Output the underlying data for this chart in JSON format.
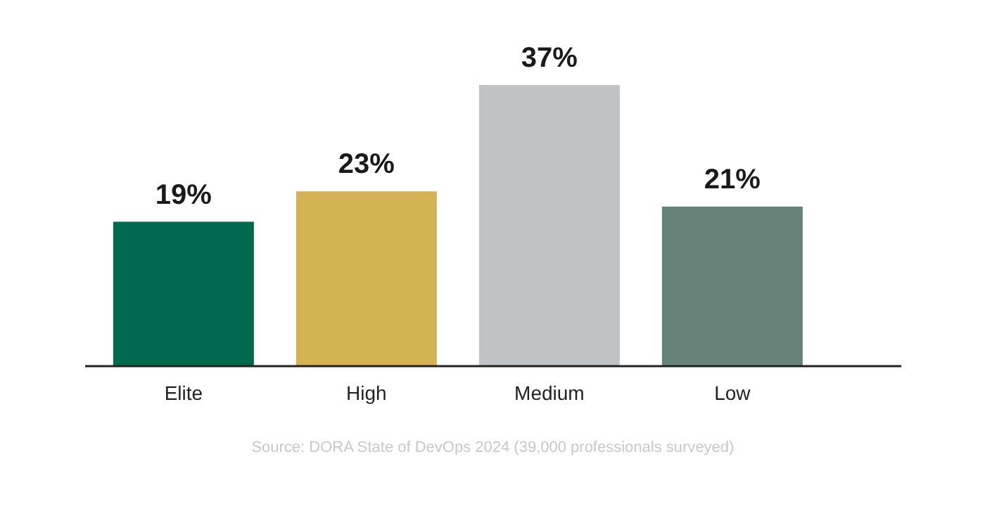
{
  "chart_data": {
    "type": "bar",
    "categories": [
      "Elite",
      "High",
      "Medium",
      "Low"
    ],
    "values": [
      19,
      23,
      37,
      21
    ],
    "value_labels": [
      "19%",
      "23%",
      "37%",
      "21%"
    ],
    "colors": [
      "#006a4e",
      "#d4b254",
      "#c0c3c6",
      "#66837a"
    ],
    "grid": false,
    "tick_labels": "x",
    "annotations": [
      "Source: DORA State of DevOps 2024 (39,000 professionals surveyed)"
    ]
  }
}
